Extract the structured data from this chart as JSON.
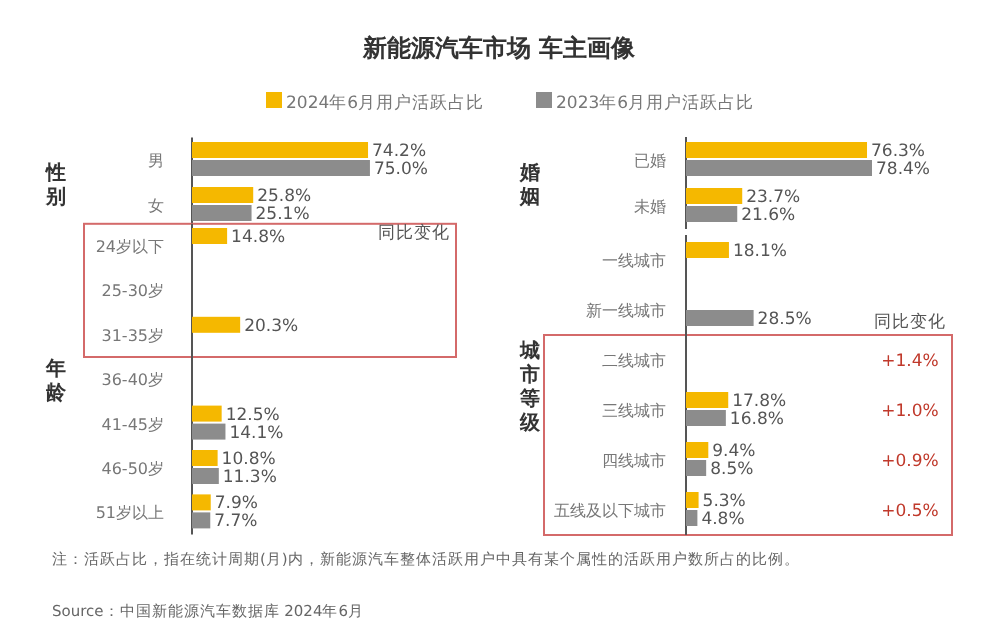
{
  "chart_data": [
    {
      "type": "bar",
      "orientation": "horizontal",
      "title": "新能源汽车市场 车主画像",
      "ylabel": "性别",
      "legend": "top",
      "categories": [
        "男",
        "女"
      ],
      "series": [
        {
          "name": "2024年6月用户活跃占比",
          "color": "#f5b800",
          "values": [
            74.2,
            25.8
          ],
          "value_labels": [
            "74.2%",
            "25.8%"
          ]
        },
        {
          "name": "2023年6月用户活跃占比",
          "color": "#8c8c8c",
          "values": [
            75.0,
            25.1
          ],
          "value_labels": [
            "75.0%",
            "25.1%"
          ]
        }
      ],
      "annotations": [
        "注：活跃占比，指在统计周期(月)内，新能源汽车整体活跃用户中具有某个属性的活跃用户数所占的比例。",
        "Source：中国新能源汽车数据库 2024年6月"
      ]
    },
    {
      "type": "bar",
      "orientation": "horizontal",
      "ylabel": "年龄",
      "categories": [
        "24岁以下",
        "25-30岁",
        "31-35岁",
        "36-40岁",
        "41-45岁",
        "46-50岁",
        "51岁以上"
      ],
      "series": [
        {
          "color": "#f5b800",
          "values": [
            14.8,
            null,
            20.3,
            null,
            12.5,
            10.8,
            7.9
          ],
          "value_labels": [
            "14.8%",
            null,
            "20.3%",
            null,
            "12.5%",
            "10.8%",
            "7.9%"
          ]
        },
        {
          "color": "#8c8c8c",
          "values": [
            null,
            null,
            null,
            null,
            14.1,
            11.3,
            7.7
          ],
          "value_labels": [
            null,
            null,
            null,
            null,
            "14.1%",
            "11.3%",
            "7.7%"
          ]
        }
      ],
      "annotations": [
        "同比变化"
      ]
    },
    {
      "type": "bar",
      "orientation": "horizontal",
      "ylabel": "婚姻",
      "categories": [
        "已婚",
        "未婚"
      ],
      "series": [
        {
          "color": "#f5b800",
          "values": [
            76.3,
            23.7
          ],
          "value_labels": [
            "76.3%",
            "23.7%"
          ]
        },
        {
          "color": "#8c8c8c",
          "values": [
            78.4,
            21.6
          ],
          "value_labels": [
            "78.4%",
            "21.6%"
          ]
        }
      ]
    },
    {
      "type": "bar",
      "orientation": "horizontal",
      "ylabel": "城市等级",
      "categories": [
        "一线城市",
        "新一线城市",
        "二线城市",
        "三线城市",
        "四线城市",
        "五线及以下城市"
      ],
      "series": [
        {
          "color": "#f5b800",
          "values": [
            18.1,
            null,
            null,
            17.8,
            9.4,
            5.3
          ],
          "value_labels": [
            "18.1%",
            null,
            null,
            "17.8%",
            "9.4%",
            "5.3%"
          ]
        },
        {
          "color": "#8c8c8c",
          "values": [
            null,
            28.5,
            null,
            16.8,
            8.5,
            4.8
          ],
          "value_labels": [
            null,
            "28.5%",
            null,
            "16.8%",
            "8.5%",
            "4.8%"
          ]
        }
      ],
      "annotations": [
        "同比变化",
        "+1.4%",
        "+1.0%",
        "+0.9%",
        "+0.5%"
      ]
    }
  ]
}
